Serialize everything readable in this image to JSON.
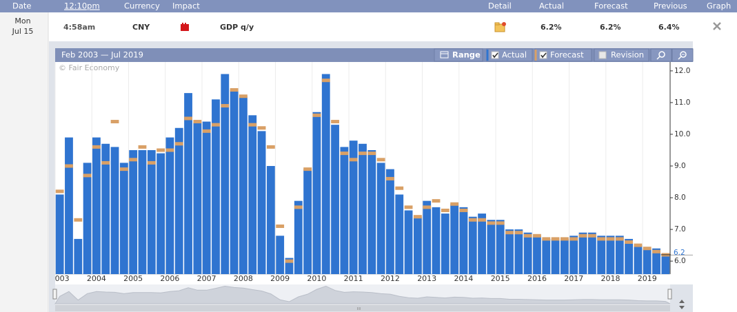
{
  "header": {
    "columns": [
      "Date",
      "12:10pm",
      "Currency",
      "Impact",
      "Detail",
      "Actual",
      "Forecast",
      "Previous",
      "Graph"
    ]
  },
  "event": {
    "day": "Mon",
    "date": "Jul 15",
    "time": "4:58am",
    "currency": "CNY",
    "name": "GDP q/y",
    "actual": "6.2%",
    "forecast": "6.2%",
    "previous": "6.4%"
  },
  "toolbar": {
    "range": "Range",
    "revision": "Revision"
  },
  "chart_data": {
    "type": "bar",
    "title": "Feb 2003 — Jul 2019",
    "watermark": "© Fair Economy",
    "categories": [
      "2003",
      null,
      null,
      null,
      "2004",
      null,
      null,
      null,
      "2005",
      null,
      null,
      null,
      "2006",
      null,
      null,
      null,
      "2007",
      null,
      null,
      null,
      "2008",
      null,
      null,
      null,
      "2009",
      null,
      null,
      null,
      "2010",
      null,
      null,
      null,
      "2011",
      null,
      null,
      null,
      "2012",
      null,
      null,
      null,
      "2013",
      null,
      null,
      null,
      "2014",
      null,
      null,
      null,
      "2015",
      null,
      null,
      null,
      "2016",
      null,
      null,
      null,
      "2017",
      null,
      null,
      null,
      "2018",
      null,
      null,
      null,
      "2019",
      null,
      null
    ],
    "series": [
      {
        "name": "Actual",
        "color": "#2f74d0",
        "values": [
          8.1,
          9.9,
          6.7,
          9.1,
          9.9,
          9.7,
          9.6,
          9.1,
          9.5,
          9.5,
          9.5,
          9.4,
          9.9,
          10.2,
          11.3,
          10.4,
          10.4,
          11.1,
          11.9,
          11.4,
          11.2,
          10.6,
          10.1,
          9.0,
          6.8,
          6.1,
          7.9,
          8.9,
          10.7,
          11.9,
          10.3,
          9.6,
          9.8,
          9.7,
          9.5,
          9.1,
          8.9,
          8.1,
          7.6,
          7.4,
          7.9,
          7.7,
          7.5,
          7.8,
          7.7,
          7.4,
          7.5,
          7.3,
          7.3,
          7.0,
          7.0,
          6.9,
          6.8,
          6.7,
          6.7,
          6.7,
          6.8,
          6.9,
          6.9,
          6.8,
          6.8,
          6.8,
          6.7,
          6.5,
          6.4,
          6.4,
          6.2
        ]
      },
      {
        "name": "Forecast",
        "color": "#d9a066",
        "mark": "dash",
        "values": [
          8.2,
          9.0,
          7.3,
          8.7,
          9.6,
          9.1,
          10.4,
          8.9,
          9.2,
          9.6,
          9.1,
          9.5,
          9.5,
          9.7,
          10.5,
          10.4,
          10.1,
          10.3,
          10.9,
          11.4,
          11.2,
          10.3,
          10.2,
          9.6,
          7.1,
          6.0,
          7.7,
          8.9,
          10.6,
          11.7,
          10.4,
          9.4,
          9.2,
          9.4,
          9.4,
          9.2,
          8.6,
          8.3,
          7.7,
          7.4,
          7.7,
          7.9,
          7.6,
          7.8,
          7.6,
          7.3,
          7.3,
          7.2,
          7.2,
          6.9,
          6.9,
          6.8,
          6.8,
          6.7,
          6.7,
          6.7,
          6.7,
          6.8,
          6.8,
          6.7,
          6.7,
          6.7,
          6.6,
          6.5,
          6.4,
          6.3,
          6.2
        ]
      }
    ],
    "ylim": [
      5.59,
      12.28
    ],
    "yticks": [
      {
        "value": 6,
        "label": "6.0"
      },
      {
        "value": 7,
        "label": "7.0"
      },
      {
        "value": 8,
        "label": "8.0"
      },
      {
        "value": 9,
        "label": "9.0"
      },
      {
        "value": 10,
        "label": "10.0"
      },
      {
        "value": 11,
        "label": "11.0"
      },
      {
        "value": 12,
        "label": "12.0"
      }
    ],
    "grid": true
  }
}
